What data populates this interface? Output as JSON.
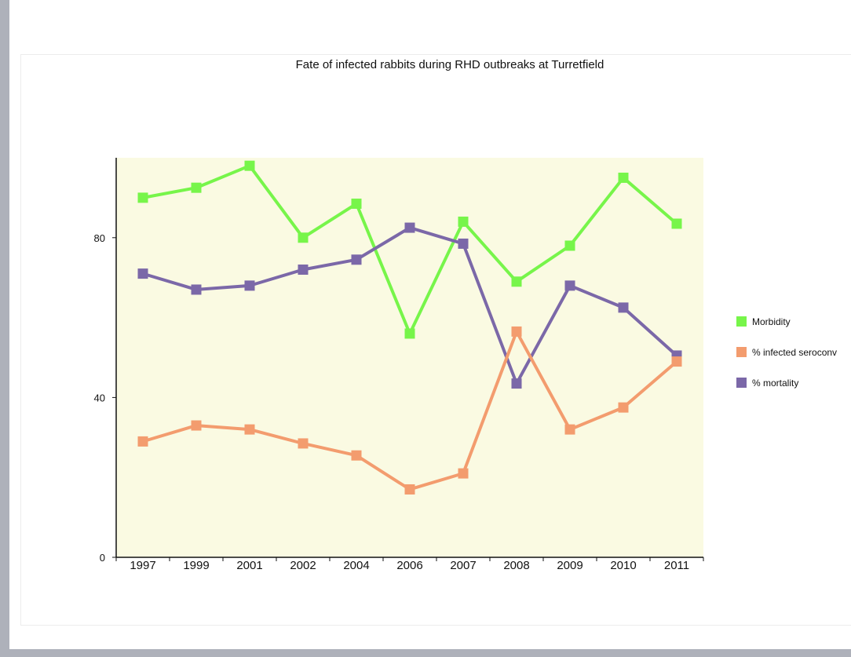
{
  "chart_data": {
    "type": "line",
    "title": "Fate of infected rabbits during RHD outbreaks at Turretfield",
    "xlabel": "",
    "ylabel": "",
    "categories": [
      "1997",
      "1999",
      "2001",
      "2002",
      "2004",
      "2006",
      "2007",
      "2008",
      "2009",
      "2010",
      "2011"
    ],
    "yticks": [
      0,
      40,
      80
    ],
    "ylim": [
      0,
      100
    ],
    "grid": false,
    "legend_position": "right",
    "plot_background": "#fafae2",
    "series": [
      {
        "name": "Morbidity",
        "color": "#77f54a",
        "marker": "square",
        "values": [
          90,
          92.5,
          98,
          80,
          88.5,
          56,
          84,
          69,
          78,
          95,
          83.5
        ]
      },
      {
        "name": "% infected seroconv",
        "color": "#f39c6e",
        "marker": "square",
        "values": [
          29,
          33,
          32,
          28.5,
          25.5,
          17,
          21,
          56.5,
          32,
          37.5,
          49
        ]
      },
      {
        "name": "% mortality",
        "color": "#7b68a8",
        "marker": "square",
        "values": [
          71,
          67,
          68,
          72,
          74.5,
          82.5,
          78.5,
          43.5,
          68,
          62.5,
          50.5
        ]
      }
    ]
  }
}
